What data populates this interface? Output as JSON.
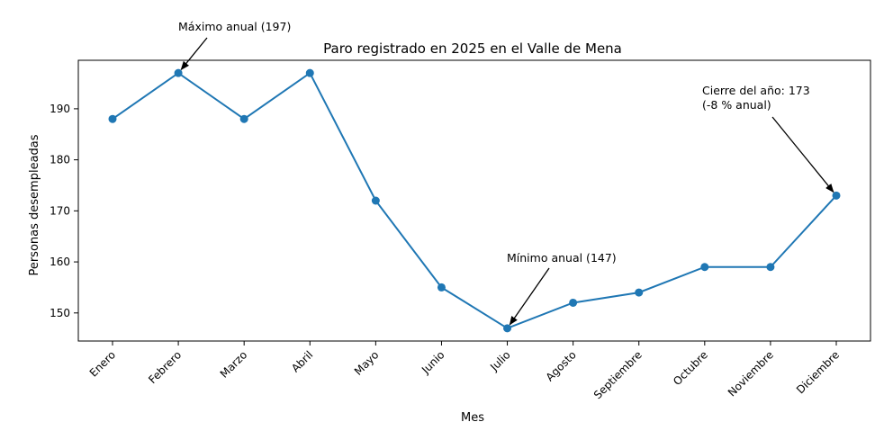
{
  "chart_data": {
    "type": "line",
    "title": "Paro registrado en 2025 en el Valle de Mena",
    "xlabel": "Mes",
    "ylabel": "Personas desempleadas",
    "categories": [
      "Enero",
      "Febrero",
      "Marzo",
      "Abril",
      "Mayo",
      "Junio",
      "Julio",
      "Agosto",
      "Septiembre",
      "Octubre",
      "Noviembre",
      "Diciembre"
    ],
    "series": [
      {
        "values": [
          188,
          197,
          188,
          197,
          172,
          155,
          147,
          152,
          154,
          159,
          159,
          173
        ]
      }
    ],
    "ylim": [
      144.5,
      199.5
    ],
    "yticks": [
      150,
      160,
      170,
      180,
      190
    ],
    "grid": false,
    "line_color": "#1f77b4",
    "annotations": [
      {
        "lines": [
          "Máximo anual (197)"
        ],
        "point_index": 1
      },
      {
        "lines": [
          "Mínimo anual (147)"
        ],
        "point_index": 6
      },
      {
        "lines": [
          "Cierre del año: 173",
          "(-8 % anual)"
        ],
        "point_index": 11
      }
    ]
  }
}
